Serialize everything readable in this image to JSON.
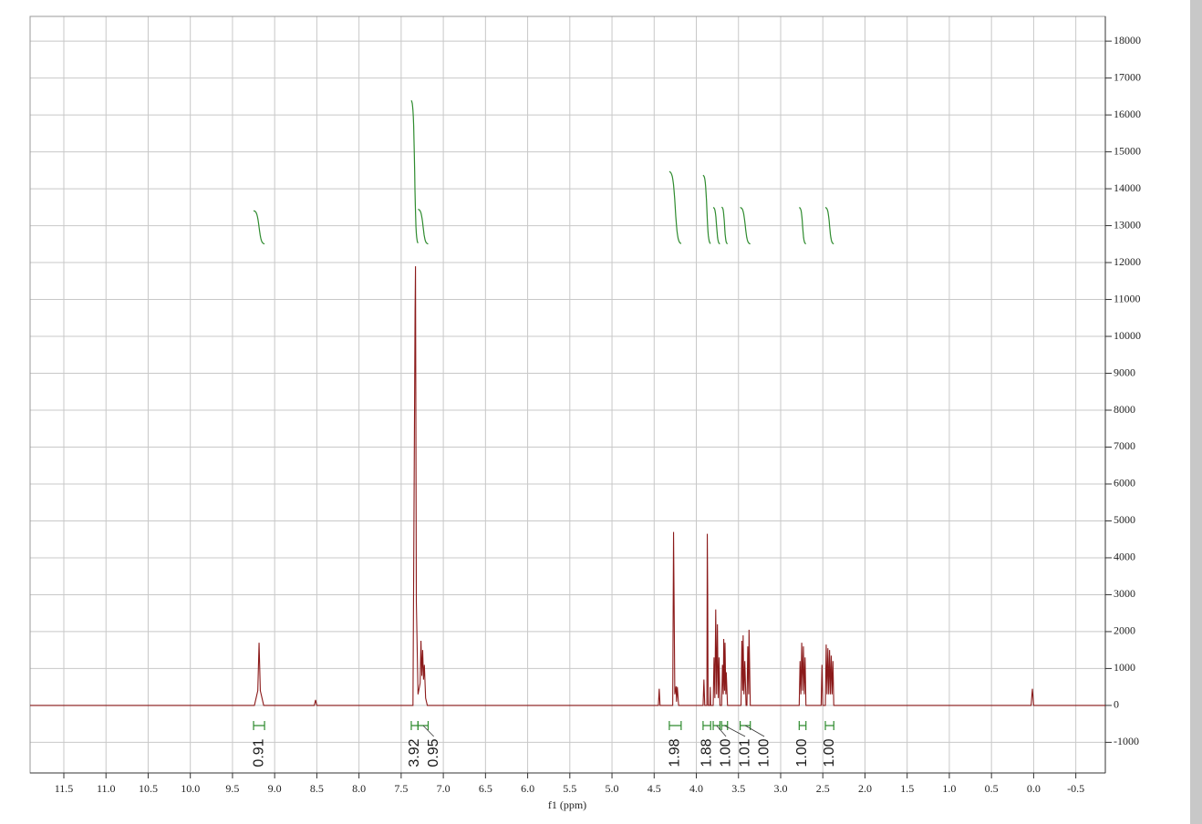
{
  "chart_data": {
    "type": "line",
    "x_label": "f1 (ppm)",
    "color": "#8b1a1a",
    "xlim": [
      11.9,
      -0.85
    ],
    "ylim": [
      -1830,
      18670
    ],
    "grid": true,
    "xticks": [
      11.5,
      {
        "value": 11,
        "label": "11.0"
      },
      10.5,
      {
        "value": 10,
        "label": "10.0"
      },
      9.5,
      {
        "value": 9,
        "label": "9.0"
      },
      8.5,
      {
        "value": 8,
        "label": "8.0"
      },
      7.5,
      {
        "value": 7,
        "label": "7.0"
      },
      6.5,
      {
        "value": 6,
        "label": "6.0"
      },
      5.5,
      {
        "value": 5,
        "label": "5.0"
      },
      4.5,
      {
        "value": 4,
        "label": "4.0"
      },
      3.5,
      {
        "value": 3,
        "label": "3.0"
      },
      2.5,
      {
        "value": 2,
        "label": "2.0"
      },
      1.5,
      {
        "value": 1,
        "label": "1.0"
      },
      0.5,
      {
        "value": 0,
        "label": "0.0"
      },
      -0.5
    ],
    "yticks": [
      -1000,
      0,
      1000,
      2000,
      3000,
      4000,
      5000,
      6000,
      7000,
      8000,
      9000,
      10000,
      11000,
      12000,
      13000,
      14000,
      15000,
      16000,
      17000,
      18000
    ],
    "x": [
      11.9,
      9.24,
      9.2,
      9.185,
      9.17,
      9.13,
      8.53,
      8.515,
      8.5,
      7.36,
      7.335,
      7.33,
      7.32,
      7.3,
      7.275,
      7.265,
      7.255,
      7.245,
      7.235,
      7.225,
      7.21,
      7.19,
      4.45,
      4.44,
      4.43,
      4.28,
      4.27,
      4.255,
      4.24,
      4.235,
      4.225,
      4.21,
      3.92,
      3.91,
      3.9,
      3.875,
      3.87,
      3.865,
      3.86,
      3.84,
      3.835,
      3.83,
      3.8,
      3.79,
      3.78,
      3.77,
      3.76,
      3.75,
      3.74,
      3.73,
      3.72,
      3.7,
      3.69,
      3.68,
      3.675,
      3.665,
      3.66,
      3.65,
      3.645,
      3.63,
      3.47,
      3.46,
      3.45,
      3.445,
      3.435,
      3.425,
      3.41,
      3.4,
      3.39,
      3.38,
      3.375,
      3.36,
      2.78,
      2.77,
      2.76,
      2.75,
      2.74,
      2.73,
      2.72,
      2.71,
      2.7,
      2.52,
      2.51,
      2.5,
      2.47,
      2.46,
      2.45,
      2.44,
      2.43,
      2.42,
      2.41,
      2.4,
      2.39,
      2.38,
      2.37,
      0.03,
      0.015,
      0,
      -0.85
    ],
    "values": [
      0,
      0,
      400,
      1700,
      400,
      0,
      0,
      150,
      0,
      0,
      10700,
      11900,
      2800,
      300,
      600,
      1750,
      800,
      1500,
      700,
      1100,
      200,
      0,
      0,
      450,
      0,
      0,
      4700,
      300,
      520,
      100,
      500,
      0,
      0,
      700,
      0,
      0,
      4650,
      3000,
      0,
      0,
      500,
      0,
      0,
      1300,
      200,
      2600,
      300,
      2200,
      200,
      1300,
      0,
      0,
      1100,
      300,
      1800,
      400,
      1700,
      300,
      900,
      0,
      0,
      1750,
      400,
      1900,
      300,
      1200,
      0,
      0,
      1600,
      300,
      2050,
      0,
      0,
      1200,
      300,
      1700,
      400,
      1600,
      300,
      1300,
      0,
      0,
      1100,
      0,
      0,
      1650,
      300,
      1550,
      300,
      1500,
      300,
      1350,
      300,
      1200,
      0,
      0,
      450,
      0,
      0
    ],
    "integrals": {
      "color": "#2e8b2e",
      "ranges": [
        [
          9.25,
          9.12
        ],
        [
          7.38,
          7.3
        ],
        [
          7.3,
          7.18
        ],
        [
          4.32,
          4.18
        ],
        [
          3.92,
          3.83
        ],
        [
          3.8,
          3.72
        ],
        [
          3.7,
          3.63
        ],
        [
          3.48,
          3.36
        ],
        [
          2.78,
          2.7
        ],
        [
          2.47,
          2.37
        ]
      ],
      "values": [
        0.91,
        3.92,
        0.95,
        1.98,
        1.88,
        1.0,
        1.01,
        1.0,
        1.0,
        1.0
      ],
      "value_labels": [
        "0.91",
        "3.92",
        "0.95",
        "1.98",
        "1.88",
        "1.00",
        "1.01",
        "1.00",
        "1.00",
        "1.00"
      ]
    }
  }
}
